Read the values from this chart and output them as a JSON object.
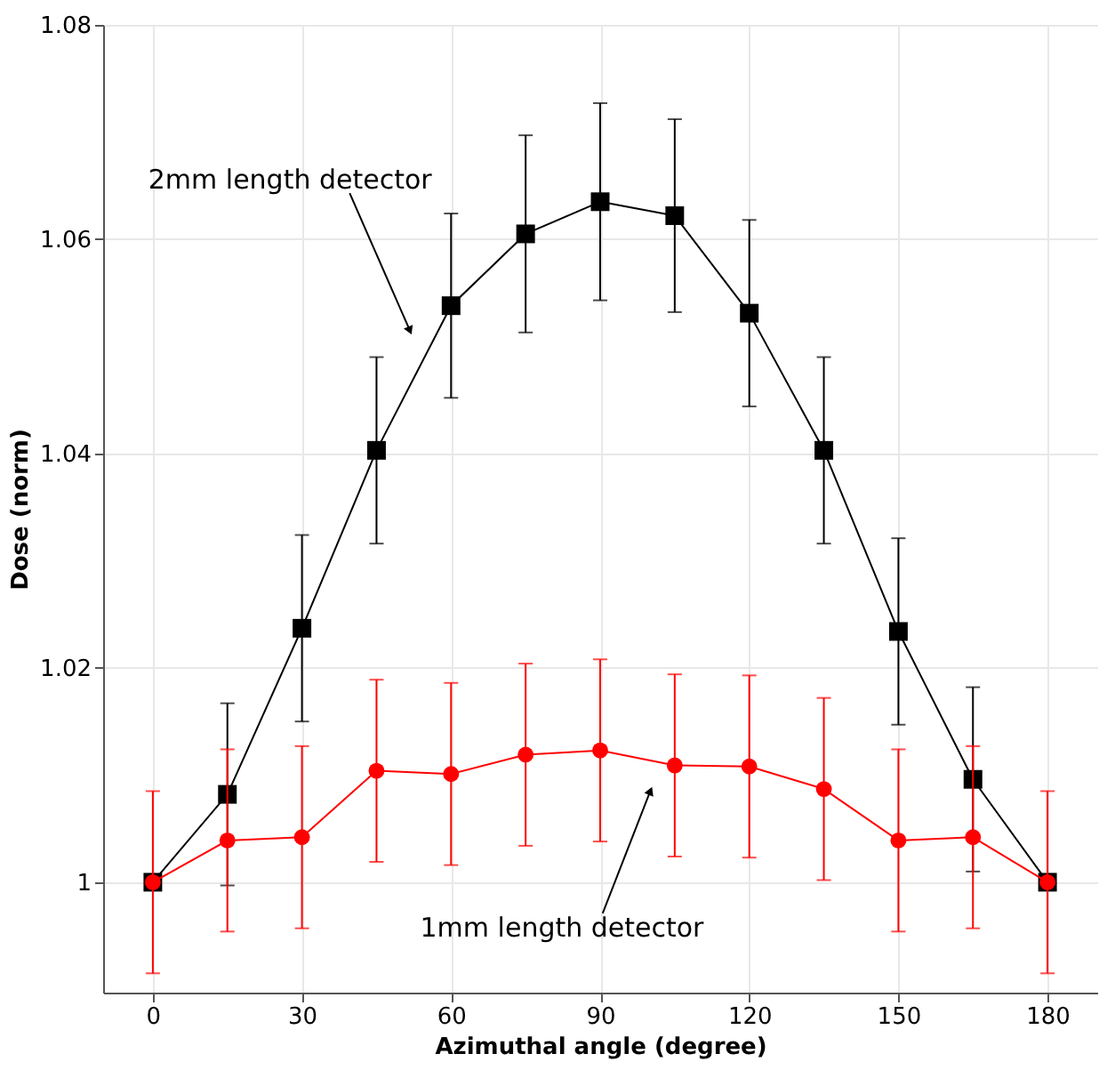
{
  "chart_data": {
    "type": "line",
    "xlabel": "Azimuthal angle (degree)",
    "ylabel": "Dose (norm)",
    "x": [
      0,
      15,
      30,
      45,
      60,
      75,
      90,
      105,
      120,
      135,
      150,
      165,
      180
    ],
    "series": [
      {
        "color": "#000000",
        "marker": "square",
        "values": [
          1.0,
          1.0082,
          1.0237,
          1.0403,
          1.0538,
          1.0605,
          1.0635,
          1.0622,
          1.0531,
          1.0403,
          1.0234,
          1.0096,
          1.0
        ],
        "errors": [
          null,
          0.0085,
          0.0087,
          0.0087,
          0.0086,
          0.0092,
          0.0092,
          0.009,
          0.0087,
          0.0087,
          0.0087,
          0.0086,
          null
        ]
      },
      {
        "color": "#ff0000",
        "marker": "circle",
        "values": [
          1.0,
          1.0039,
          1.0042,
          1.0104,
          1.0101,
          1.0119,
          1.0123,
          1.0109,
          1.0108,
          1.0087,
          1.0039,
          1.0042,
          1.0
        ],
        "errors": [
          0.0085,
          0.0085,
          0.0085,
          0.0085,
          0.0085,
          0.0085,
          0.0085,
          0.0085,
          0.0085,
          0.0085,
          0.0085,
          0.0085,
          0.0085
        ]
      }
    ],
    "annotations": [
      {
        "text": "2mm length detector",
        "x": 51.6,
        "y": 1.0516
      },
      {
        "text": "1mm length detector",
        "x": 100,
        "y": 1.0084
      }
    ],
    "xlim": [
      -10,
      190
    ],
    "xticks": [
      0,
      30,
      60,
      90,
      120,
      150,
      180
    ],
    "ylim": [
      0.9897,
      1.08
    ],
    "yticks": [
      1,
      1.02,
      1.04,
      1.06,
      1.08
    ],
    "grid": true,
    "line_style": "solid"
  }
}
